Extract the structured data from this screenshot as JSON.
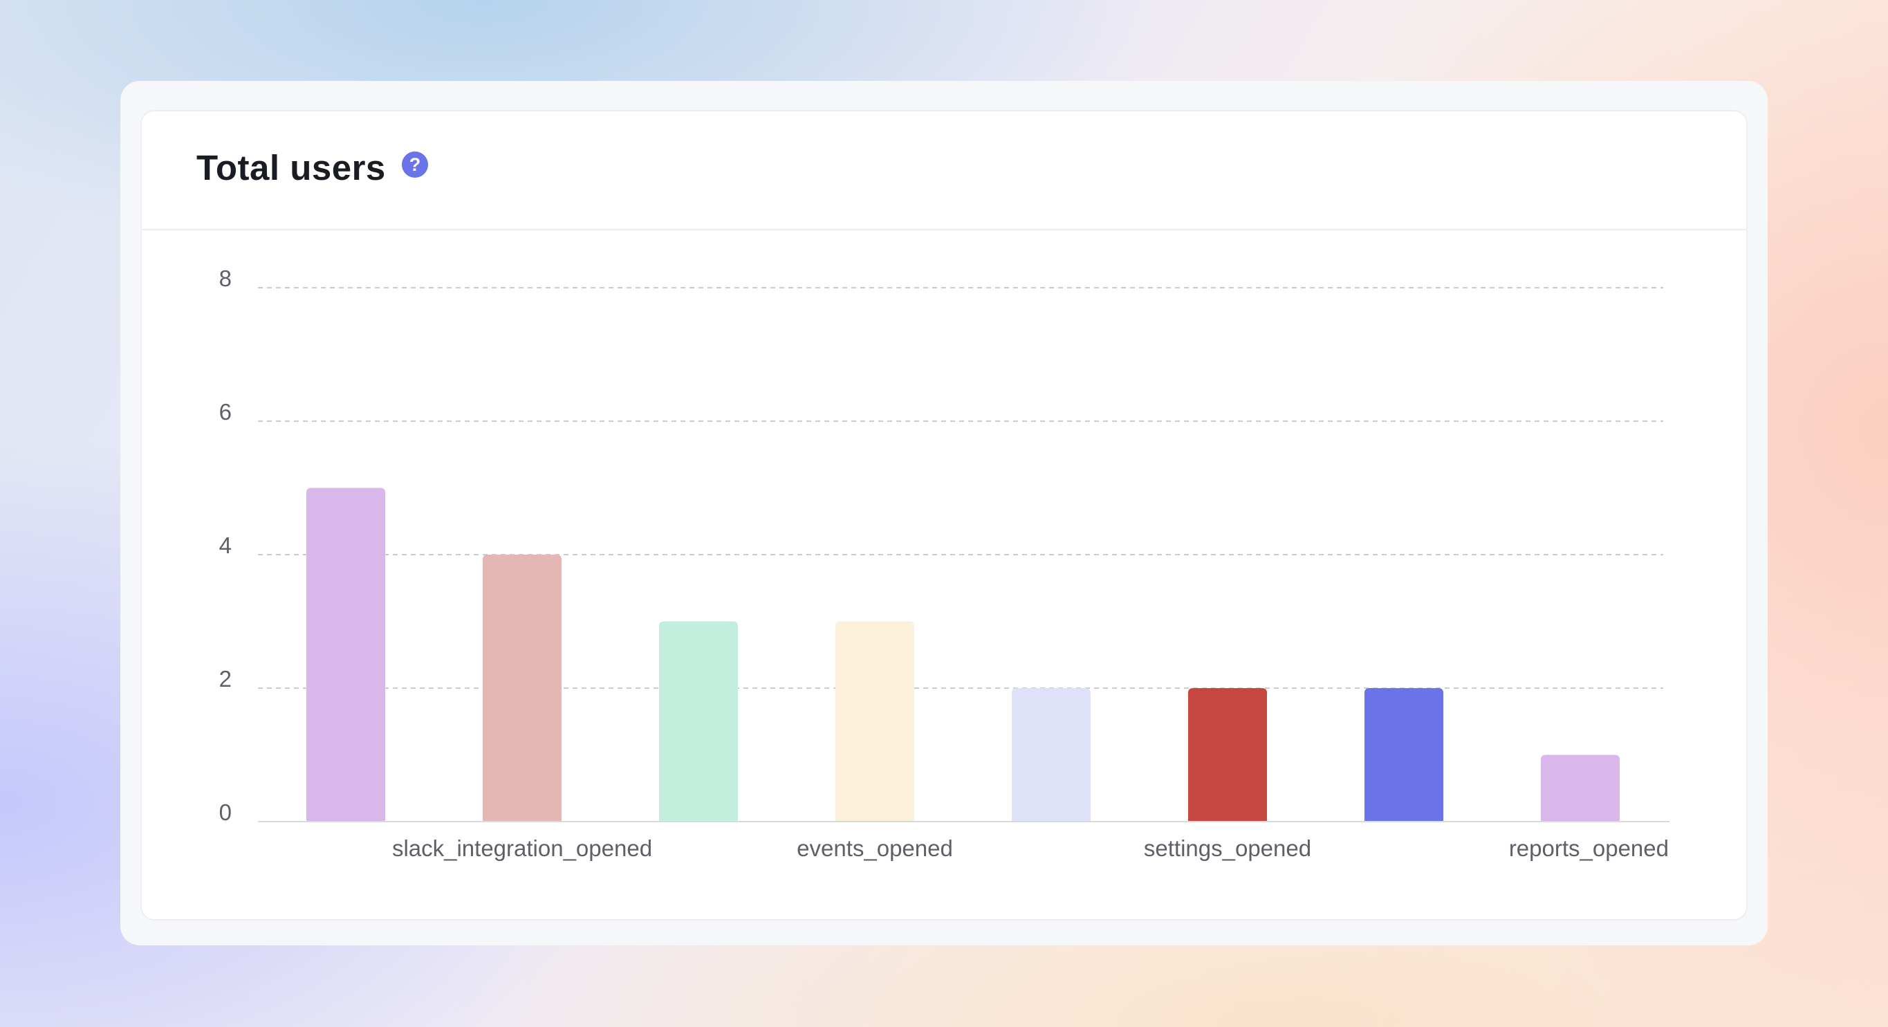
{
  "card": {
    "title": "Total users",
    "help_icon": "?"
  },
  "chart_data": {
    "type": "bar",
    "categories": [
      "",
      "slack_integration_opened",
      "",
      "events_opened",
      "",
      "settings_opened",
      "",
      "reports_opened"
    ],
    "values": [
      5,
      4,
      3,
      3,
      2,
      2,
      2,
      1
    ],
    "colors": [
      "#dab7ea",
      "#e4b7b5",
      "#c3eddd",
      "#fbf1da",
      "#dfe1f9",
      "#c5473f",
      "#6a73e7",
      "#dab7ea"
    ],
    "ylim": [
      0,
      8
    ],
    "yticks": [
      0,
      2,
      4,
      6,
      8
    ],
    "grid": true,
    "title": "",
    "xlabel": "",
    "ylabel": ""
  }
}
